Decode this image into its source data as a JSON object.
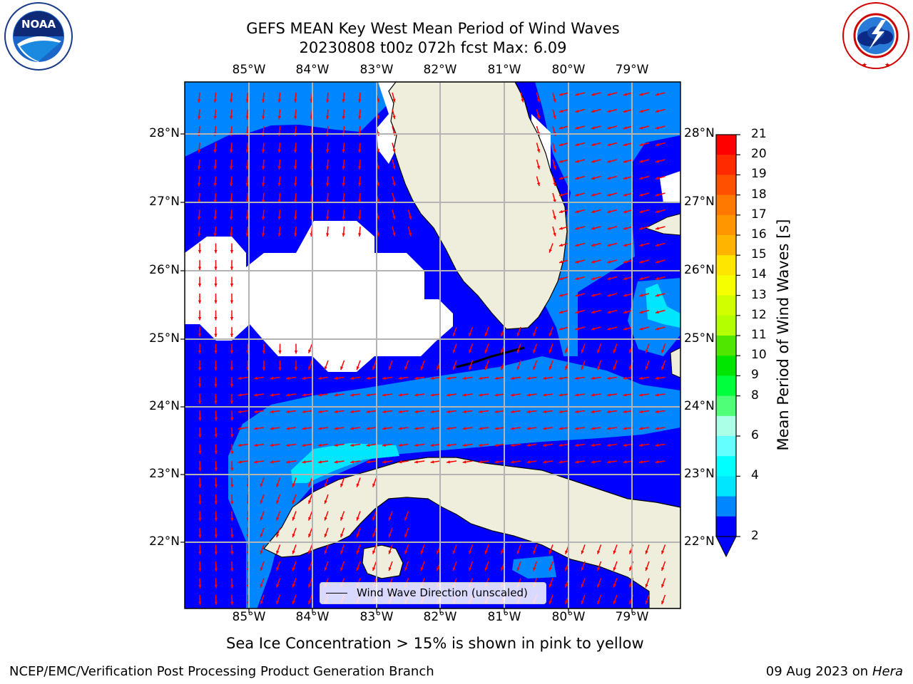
{
  "header": {
    "title_line1": "GEFS MEAN Key West Mean Period of Wind Waves",
    "title_line2": "20230808 t00z 072h fcst   Max: 6.09"
  },
  "logos": {
    "left": "NOAA",
    "left_ring_text": "NATIONAL OCEANIC AND ATMOSPHERIC ADMINISTRATION · U.S. DEPARTMENT OF COMMERCE",
    "right_ring_text": "NATIONAL WEATHER SERVICE"
  },
  "map": {
    "lon_labels": [
      "85°W",
      "84°W",
      "83°W",
      "82°W",
      "81°W",
      "80°W",
      "79°W"
    ],
    "lat_labels": [
      "28°N",
      "27°N",
      "26°N",
      "25°N",
      "24°N",
      "23°N",
      "22°N"
    ],
    "legend": "Wind Wave Direction (unscaled)",
    "colors": {
      "land": "#efeedc",
      "level_2": "#0000ff",
      "level_3": "#0087ff",
      "level_4": "#00e6ff",
      "arrow": "#ff0000",
      "grid": "#b4b4b4"
    }
  },
  "colorbar": {
    "label": "Mean Period of Wind Waves [s]",
    "ticks": [
      "21",
      "20",
      "19",
      "18",
      "17",
      "16",
      "15",
      "14",
      "13",
      "12",
      "11",
      "10",
      "9",
      "8",
      "6",
      "4",
      "2"
    ],
    "colors": [
      "#ff0000",
      "#ff2a00",
      "#ff5000",
      "#ff7800",
      "#ff9600",
      "#ffb400",
      "#ffe600",
      "#f5ff00",
      "#d2ff00",
      "#b4ff00",
      "#50e600",
      "#00e600",
      "#00ff3c",
      "#50ff78",
      "#aaffe6",
      "#64ffff",
      "#00ffff",
      "#00e6ff",
      "#0087ff",
      "#0000ff"
    ],
    "under_color": "#0000ff"
  },
  "footer": {
    "note": "Sea Ice Concentration > 15% is shown in pink to yellow",
    "left": "NCEP/EMC/Verification Post Processing Product Generation Branch",
    "date": "09 Aug 2023 on",
    "machine": "Hera"
  }
}
